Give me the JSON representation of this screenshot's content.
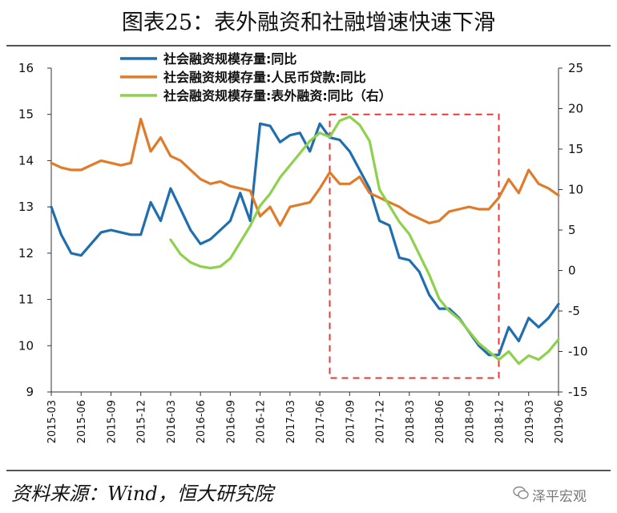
{
  "title": "图表25：表外融资和社融增速快速下滑",
  "source": "资料来源：Wind，恒大研究院",
  "watermark": "泽平宏观",
  "colors": {
    "blue": "#1f6fb0",
    "orange": "#e07b2a",
    "green": "#8ed14c",
    "box": "#e53a3a"
  },
  "chart_data": {
    "type": "line",
    "x_labels": [
      "2015-03",
      "2015-06",
      "2015-09",
      "2015-12",
      "2016-03",
      "2016-06",
      "2016-09",
      "2016-12",
      "2017-03",
      "2017-06",
      "2017-09",
      "2017-12",
      "2018-03",
      "2018-06",
      "2018-09",
      "2018-12",
      "2019-03",
      "2019-06"
    ],
    "y_left": {
      "min": 9,
      "max": 16,
      "ticks": [
        9,
        10,
        11,
        12,
        13,
        14,
        15,
        16
      ]
    },
    "y_right": {
      "min": -15,
      "max": 25,
      "ticks": [
        -15,
        -10,
        -5,
        0,
        5,
        10,
        15,
        20,
        25
      ]
    },
    "legend": [
      {
        "label": "社会融资规模存量:同比",
        "color": "#1f6fb0"
      },
      {
        "label": "社会融资规模存量:人民币贷款:同比",
        "color": "#e07b2a"
      },
      {
        "label": "社会融资规模存量:表外融资:同比（右）",
        "color": "#8ed14c"
      }
    ],
    "series": [
      {
        "name": "社会融资规模存量:同比",
        "axis": "left",
        "color": "#1f6fb0",
        "x": [
          "2015-03",
          "2015-04",
          "2015-05",
          "2015-06",
          "2015-07",
          "2015-08",
          "2015-09",
          "2015-10",
          "2015-11",
          "2015-12",
          "2016-01",
          "2016-02",
          "2016-03",
          "2016-04",
          "2016-05",
          "2016-06",
          "2016-07",
          "2016-08",
          "2016-09",
          "2016-10",
          "2016-11",
          "2016-12",
          "2017-01",
          "2017-02",
          "2017-03",
          "2017-04",
          "2017-05",
          "2017-06",
          "2017-07",
          "2017-08",
          "2017-09",
          "2017-10",
          "2017-11",
          "2017-12",
          "2018-01",
          "2018-02",
          "2018-03",
          "2018-04",
          "2018-05",
          "2018-06",
          "2018-07",
          "2018-08",
          "2018-09",
          "2018-10",
          "2018-11",
          "2018-12",
          "2019-01",
          "2019-02",
          "2019-03",
          "2019-04",
          "2019-05",
          "2019-06"
        ],
        "values": [
          13.0,
          12.4,
          12.0,
          11.95,
          12.2,
          12.45,
          12.5,
          12.45,
          12.4,
          12.4,
          13.1,
          12.7,
          13.4,
          12.95,
          12.5,
          12.2,
          12.3,
          12.5,
          12.7,
          13.3,
          12.7,
          14.8,
          14.75,
          14.4,
          14.55,
          14.6,
          14.2,
          14.8,
          14.5,
          14.45,
          14.2,
          13.8,
          13.4,
          12.7,
          12.6,
          11.9,
          11.85,
          11.6,
          11.1,
          10.8,
          10.8,
          10.6,
          10.3,
          10.0,
          9.8,
          9.8,
          10.4,
          10.1,
          10.6,
          10.4,
          10.6,
          10.9
        ]
      },
      {
        "name": "社会融资规模存量:人民币贷款:同比",
        "axis": "left",
        "color": "#e07b2a",
        "x": [
          "2015-03",
          "2015-04",
          "2015-05",
          "2015-06",
          "2015-07",
          "2015-08",
          "2015-09",
          "2015-10",
          "2015-11",
          "2015-12",
          "2016-01",
          "2016-02",
          "2016-03",
          "2016-04",
          "2016-05",
          "2016-06",
          "2016-07",
          "2016-08",
          "2016-09",
          "2016-10",
          "2016-11",
          "2016-12",
          "2017-01",
          "2017-02",
          "2017-03",
          "2017-04",
          "2017-05",
          "2017-06",
          "2017-07",
          "2017-08",
          "2017-09",
          "2017-10",
          "2017-11",
          "2017-12",
          "2018-01",
          "2018-02",
          "2018-03",
          "2018-04",
          "2018-05",
          "2018-06",
          "2018-07",
          "2018-08",
          "2018-09",
          "2018-10",
          "2018-11",
          "2018-12",
          "2019-01",
          "2019-02",
          "2019-03",
          "2019-04",
          "2019-05",
          "2019-06"
        ],
        "values": [
          13.95,
          13.85,
          13.8,
          13.8,
          13.9,
          14.0,
          13.95,
          13.9,
          13.95,
          14.9,
          14.2,
          14.5,
          14.1,
          14.0,
          13.8,
          13.6,
          13.5,
          13.55,
          13.45,
          13.4,
          13.35,
          12.8,
          13.0,
          12.6,
          13.0,
          13.05,
          13.1,
          13.4,
          13.75,
          13.5,
          13.5,
          13.65,
          13.3,
          13.2,
          13.1,
          13.0,
          12.85,
          12.75,
          12.65,
          12.7,
          12.9,
          12.95,
          13.0,
          12.95,
          12.95,
          13.2,
          13.6,
          13.3,
          13.8,
          13.5,
          13.4,
          13.25
        ]
      },
      {
        "name": "社会融资规模存量:表外融资:同比（右）",
        "axis": "right",
        "color": "#8ed14c",
        "x": [
          "2016-03",
          "2016-04",
          "2016-05",
          "2016-06",
          "2016-07",
          "2016-08",
          "2016-09",
          "2016-10",
          "2016-11",
          "2016-12",
          "2017-01",
          "2017-02",
          "2017-03",
          "2017-04",
          "2017-05",
          "2017-06",
          "2017-07",
          "2017-08",
          "2017-09",
          "2017-10",
          "2017-11",
          "2017-12",
          "2018-01",
          "2018-02",
          "2018-03",
          "2018-04",
          "2018-05",
          "2018-06",
          "2018-07",
          "2018-08",
          "2018-09",
          "2018-10",
          "2018-11",
          "2018-12",
          "2019-01",
          "2019-02",
          "2019-03",
          "2019-04",
          "2019-05",
          "2019-06"
        ],
        "values": [
          3.8,
          2.0,
          1.0,
          0.5,
          0.3,
          0.5,
          1.5,
          3.5,
          5.5,
          8.0,
          9.5,
          11.5,
          13.0,
          14.5,
          16.0,
          17.0,
          16.5,
          18.5,
          19.0,
          18.0,
          16.0,
          10.0,
          8.0,
          6.0,
          4.5,
          2.0,
          -0.5,
          -3.5,
          -5.0,
          -6.0,
          -7.5,
          -9.0,
          -10.0,
          -11.0,
          -10.0,
          -11.5,
          -10.5,
          -11.0,
          -10.0,
          -8.5
        ]
      }
    ],
    "annotation": {
      "type": "dashed-box",
      "x_start": "2017-07",
      "x_end": "2018-12",
      "y_from_left": 9.3,
      "y_to_left": 15.0,
      "color": "#e53a3a"
    }
  }
}
